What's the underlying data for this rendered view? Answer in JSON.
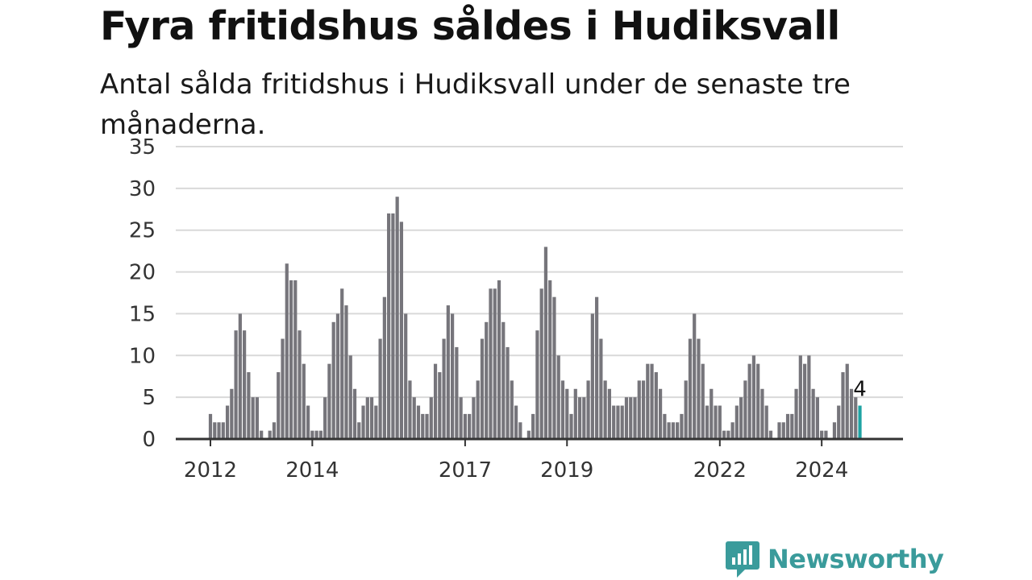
{
  "title": "Fyra fritidshus såldes i Hudiksvall",
  "subtitle": "Antal sålda fritidshus i Hudiksvall under de senaste tre månaderna.",
  "brand": {
    "name": "Newsworthy",
    "color": "#3a9b9b",
    "icon": "newsworthy-logo-icon"
  },
  "colors": {
    "bar": "#76757b",
    "highlight": "#1fa3a3",
    "grid": "#d9d9d9",
    "axis": "#333333"
  },
  "chart_data": {
    "type": "bar",
    "ylim": [
      0,
      35
    ],
    "y_ticks": [
      0,
      5,
      10,
      15,
      20,
      25,
      30,
      35
    ],
    "x_ticks": [
      {
        "label": "2012",
        "month_index": 0
      },
      {
        "label": "2014",
        "month_index": 24
      },
      {
        "label": "2017",
        "month_index": 60
      },
      {
        "label": "2019",
        "month_index": 84
      },
      {
        "label": "2022",
        "month_index": 120
      },
      {
        "label": "2024",
        "month_index": 144
      }
    ],
    "start": "2012-01",
    "values": [
      3,
      2,
      2,
      2,
      4,
      6,
      13,
      15,
      13,
      8,
      5,
      5,
      1,
      0,
      1,
      2,
      8,
      12,
      21,
      19,
      19,
      13,
      9,
      4,
      1,
      1,
      1,
      5,
      9,
      14,
      15,
      18,
      16,
      10,
      6,
      2,
      4,
      5,
      5,
      4,
      12,
      17,
      27,
      27,
      29,
      26,
      15,
      7,
      5,
      4,
      3,
      3,
      5,
      9,
      8,
      12,
      16,
      15,
      11,
      5,
      3,
      3,
      5,
      7,
      12,
      14,
      18,
      18,
      19,
      14,
      11,
      7,
      4,
      2,
      0,
      1,
      3,
      13,
      18,
      23,
      19,
      17,
      10,
      7,
      6,
      3,
      6,
      5,
      5,
      7,
      15,
      17,
      12,
      7,
      6,
      4,
      4,
      4,
      5,
      5,
      5,
      7,
      7,
      9,
      9,
      8,
      6,
      3,
      2,
      2,
      2,
      3,
      7,
      12,
      15,
      12,
      9,
      4,
      6,
      4,
      4,
      1,
      1,
      2,
      4,
      5,
      7,
      9,
      10,
      9,
      6,
      4,
      1,
      0,
      2,
      2,
      3,
      3,
      6,
      10,
      9,
      10,
      6,
      5,
      1,
      1,
      0,
      2,
      4,
      8,
      9,
      6,
      5,
      4
    ],
    "highlight_last": true,
    "last_value_label": "4"
  }
}
